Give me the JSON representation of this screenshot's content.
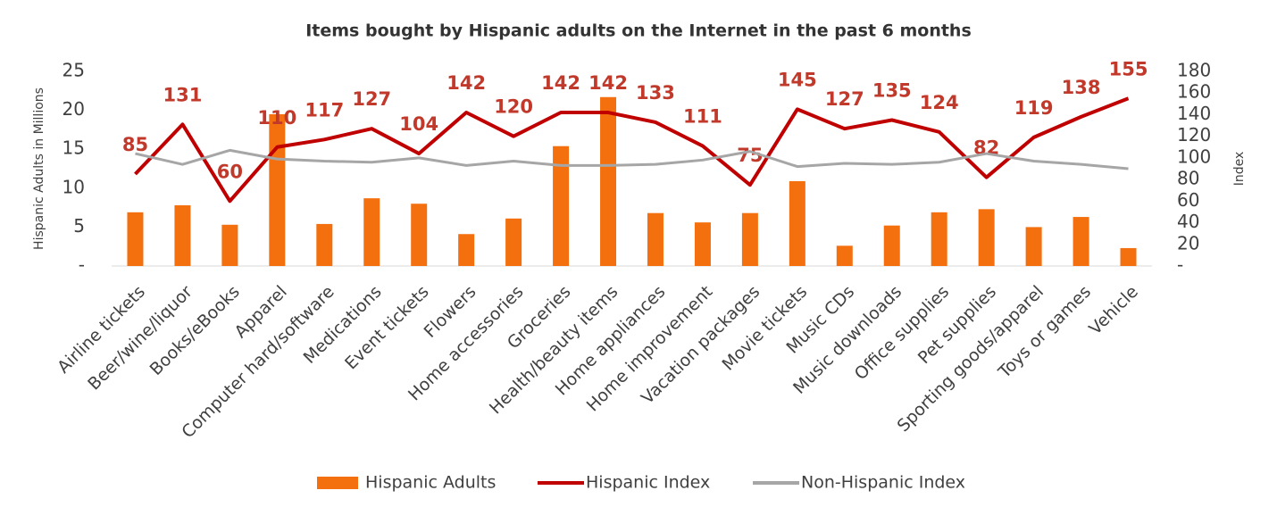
{
  "chart_data": {
    "type": "bar",
    "title": "Items bought by Hispanic adults on the Internet in the past 6 months",
    "ylabel": "Hispanic Adults in Millions",
    "y2label": "Index",
    "categories": [
      "Airline tickets",
      "Beer/wine/liquor",
      "Books/eBooks",
      "Apparel",
      "Computer hard/software",
      "Medications",
      "Event tickets",
      "Flowers",
      "Home accessories",
      "Groceries",
      "Health/beauty items",
      "Home appliances",
      "Home improvement",
      "Vacation packages",
      "Movie tickets",
      "Music CDs",
      "Music downloads",
      "Office supplies",
      "Pet supplies",
      "Sporting goods/apparel",
      "Toys or games",
      "Vehicle"
    ],
    "series": [
      {
        "name": "Hispanic Adults",
        "type": "bar",
        "color": "#f4700f",
        "values": [
          6.9,
          7.8,
          5.3,
          19.5,
          5.4,
          8.7,
          8.0,
          4.1,
          6.1,
          15.4,
          21.7,
          6.8,
          5.6,
          6.8,
          10.9,
          2.6,
          5.2,
          6.9,
          7.3,
          5.0,
          6.3,
          2.3
        ]
      },
      {
        "name": "Hispanic Index",
        "type": "line",
        "axis": "y2",
        "color": "#c00000",
        "labels": true,
        "values": [
          85,
          131,
          60,
          110,
          117,
          127,
          104,
          142,
          120,
          142,
          142,
          133,
          111,
          75,
          145,
          127,
          135,
          124,
          82,
          119,
          138,
          155
        ]
      },
      {
        "name": "Non-Hispanic Index",
        "type": "line",
        "axis": "y2",
        "color": "#a6a6a6",
        "values": [
          104,
          94,
          107,
          99,
          97,
          96,
          100,
          93,
          97,
          93,
          93,
          94,
          98,
          106,
          92,
          95,
          94,
          96,
          104,
          97,
          94,
          90
        ]
      }
    ],
    "ylim": [
      0,
      25
    ],
    "yticks": [
      {
        "value": 0,
        "label": "-"
      },
      5,
      10,
      15,
      20,
      25
    ],
    "y2lim": [
      0,
      180
    ],
    "y2ticks": [
      {
        "value": 0,
        "label": "-"
      },
      20,
      40,
      60,
      80,
      100,
      120,
      140,
      160,
      180
    ],
    "legend": "bottom"
  }
}
